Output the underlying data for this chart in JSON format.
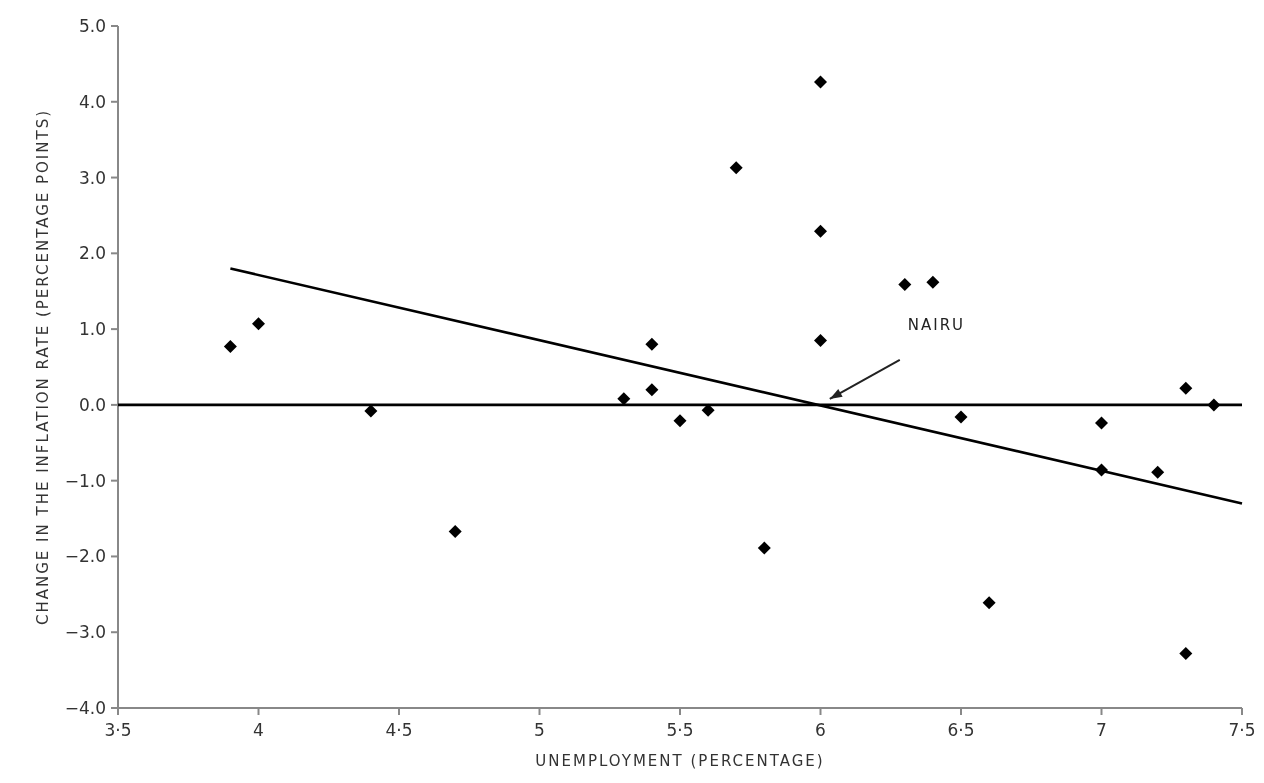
{
  "chart_data": {
    "type": "scatter",
    "xlabel": "UNEMPLOYMENT (PERCENTAGE)",
    "ylabel": "CHANGE IN THE INFLATION RATE (PERCENTAGE POINTS)",
    "xlim": [
      3.5,
      7.5
    ],
    "ylim": [
      -4,
      5
    ],
    "xticks": [
      {
        "value": 3.5,
        "label": "3·5"
      },
      4,
      {
        "value": 4.5,
        "label": "4·5"
      },
      5,
      {
        "value": 5.5,
        "label": "5·5"
      },
      6,
      {
        "value": 6.5,
        "label": "6·5"
      },
      7,
      {
        "value": 7.5,
        "label": "7·5"
      }
    ],
    "yticks": [
      {
        "value": -4,
        "label": "−4.0"
      },
      {
        "value": -3,
        "label": "−3.0"
      },
      {
        "value": -2,
        "label": "−2.0"
      },
      {
        "value": -1,
        "label": "−1.0"
      },
      {
        "value": 0,
        "label": "0.0"
      },
      {
        "value": 1,
        "label": "1.0"
      },
      {
        "value": 2,
        "label": "2.0"
      },
      {
        "value": 3,
        "label": "3.0"
      },
      {
        "value": 4,
        "label": "4.0"
      },
      {
        "value": 5,
        "label": "5.0"
      }
    ],
    "series": [
      {
        "type": "scatter",
        "color": "#000000",
        "marker": "diamond",
        "x": [
          3.9,
          4.0,
          4.4,
          4.7,
          5.3,
          5.4,
          5.4,
          5.5,
          5.6,
          5.7,
          5.8,
          6.0,
          6.0,
          6.0,
          6.3,
          6.4,
          6.5,
          6.6,
          7.0,
          7.0,
          7.2,
          7.3,
          7.3,
          7.4
        ],
        "values": [
          0.77,
          1.07,
          -0.08,
          -1.67,
          0.08,
          0.8,
          0.2,
          -0.21,
          -0.07,
          3.13,
          -1.89,
          4.26,
          2.29,
          0.85,
          1.59,
          1.62,
          -0.16,
          -2.61,
          -0.24,
          -0.86,
          -0.89,
          0.22,
          -3.28,
          0.0
        ]
      },
      {
        "type": "line",
        "color": "#000000",
        "line_style": "solid",
        "marker": "none",
        "x": [
          3.9,
          7.5
        ],
        "values": [
          1.8,
          -1.3
        ]
      }
    ],
    "ref_lines": [
      {
        "axis": "y",
        "value": 0,
        "color": "#000000",
        "line_style": "solid"
      }
    ],
    "annotations": [
      "NAIRU"
    ],
    "grid": false
  }
}
